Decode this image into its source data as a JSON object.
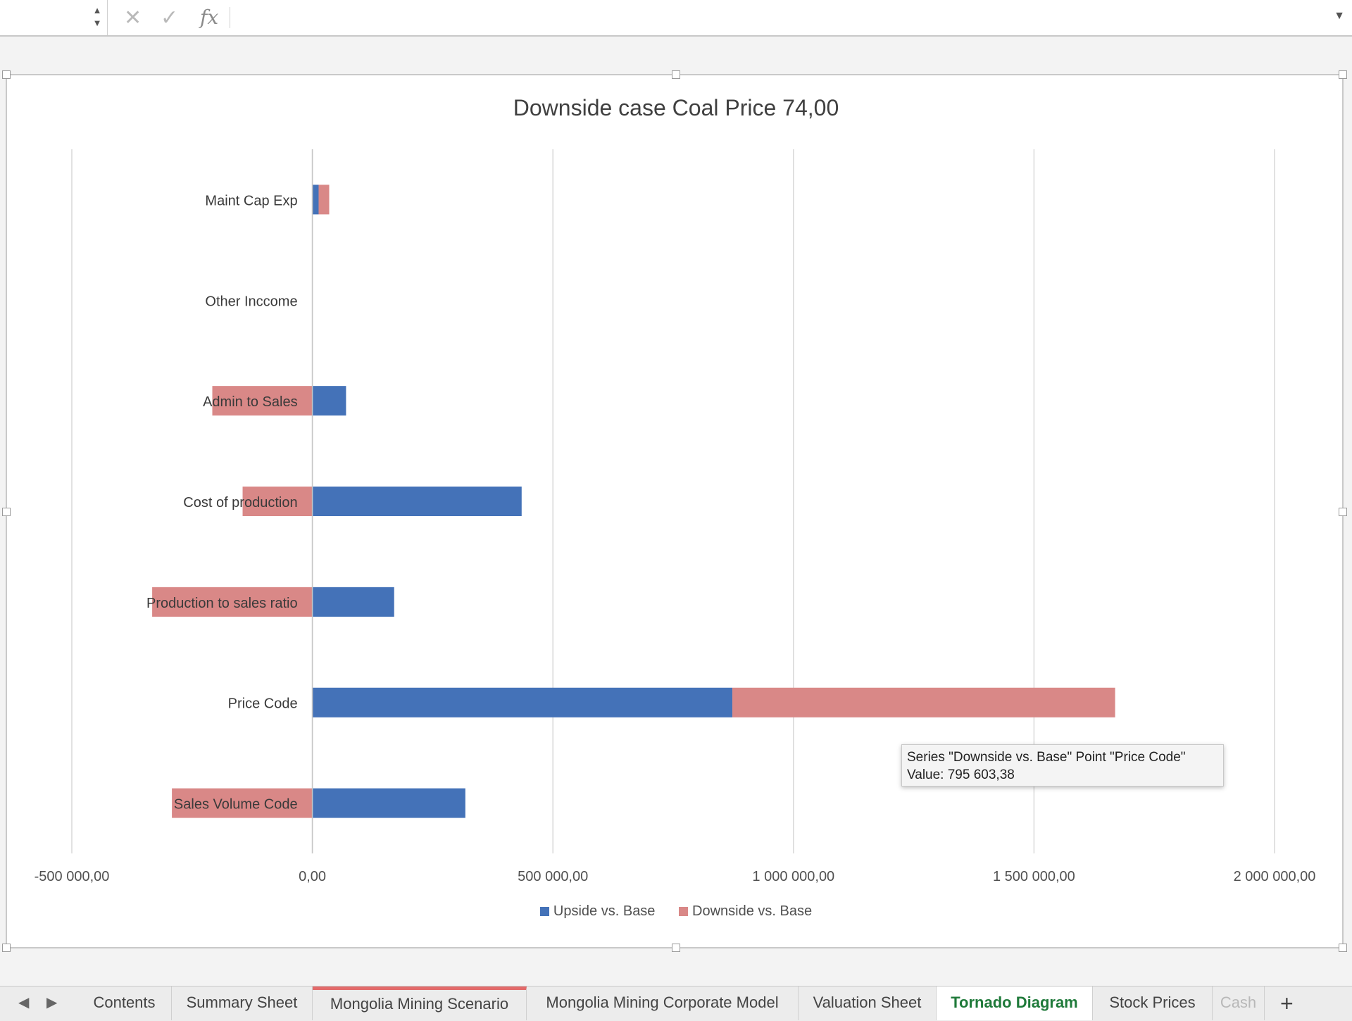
{
  "formula_bar": {
    "cell_ref": "",
    "formula": "",
    "cancel_icon": "close-icon",
    "confirm_icon": "check-icon",
    "fx_label": "fx"
  },
  "colors": {
    "upside": "#4472b8",
    "downside": "#d98887",
    "grid": "#d9d9d9",
    "tab_active": "#1f7a3a",
    "tab_marker": "#e36a6a"
  },
  "chart_data": {
    "type": "bar",
    "orientation": "horizontal",
    "stacked": true,
    "title": "Downside case Coal Price 74,00",
    "categories": [
      "Maint Cap Exp",
      "Other Inccome",
      "Admin to Sales",
      "Cost of production",
      "Production to sales ratio",
      "Price Code",
      "Sales Volume Code"
    ],
    "series": [
      {
        "name": "Upside vs. Base",
        "values": [
          13000,
          0,
          70000,
          435000,
          170000,
          873000,
          318000
        ]
      },
      {
        "name": "Downside vs. Base",
        "values": [
          22000,
          0,
          -208000,
          -145000,
          -333000,
          795603.38,
          -292000
        ]
      }
    ],
    "xlim": [
      -500000,
      2000000
    ],
    "x_ticks": [
      -500000,
      0,
      500000,
      1000000,
      1500000,
      2000000
    ],
    "x_tick_labels": [
      "-500 000,00",
      "0,00",
      "500 000,00",
      "1 000 000,00",
      "1 500 000,00",
      "2 000 000,00"
    ],
    "grid": true,
    "legend_position": "bottom"
  },
  "tooltip": {
    "line1": "Series \"Downside vs. Base\" Point \"Price Code\"",
    "line2": "Value: 795 603,38"
  },
  "tabs": [
    {
      "label": "Contents"
    },
    {
      "label": "Summary Sheet"
    },
    {
      "label": "Mongolia Mining Scenario"
    },
    {
      "label": "Mongolia Mining Corporate Model"
    },
    {
      "label": "Valuation Sheet"
    },
    {
      "label": "Tornado Diagram"
    },
    {
      "label": "Stock Prices"
    },
    {
      "label": "Cash"
    }
  ],
  "add_tab_label": "+"
}
